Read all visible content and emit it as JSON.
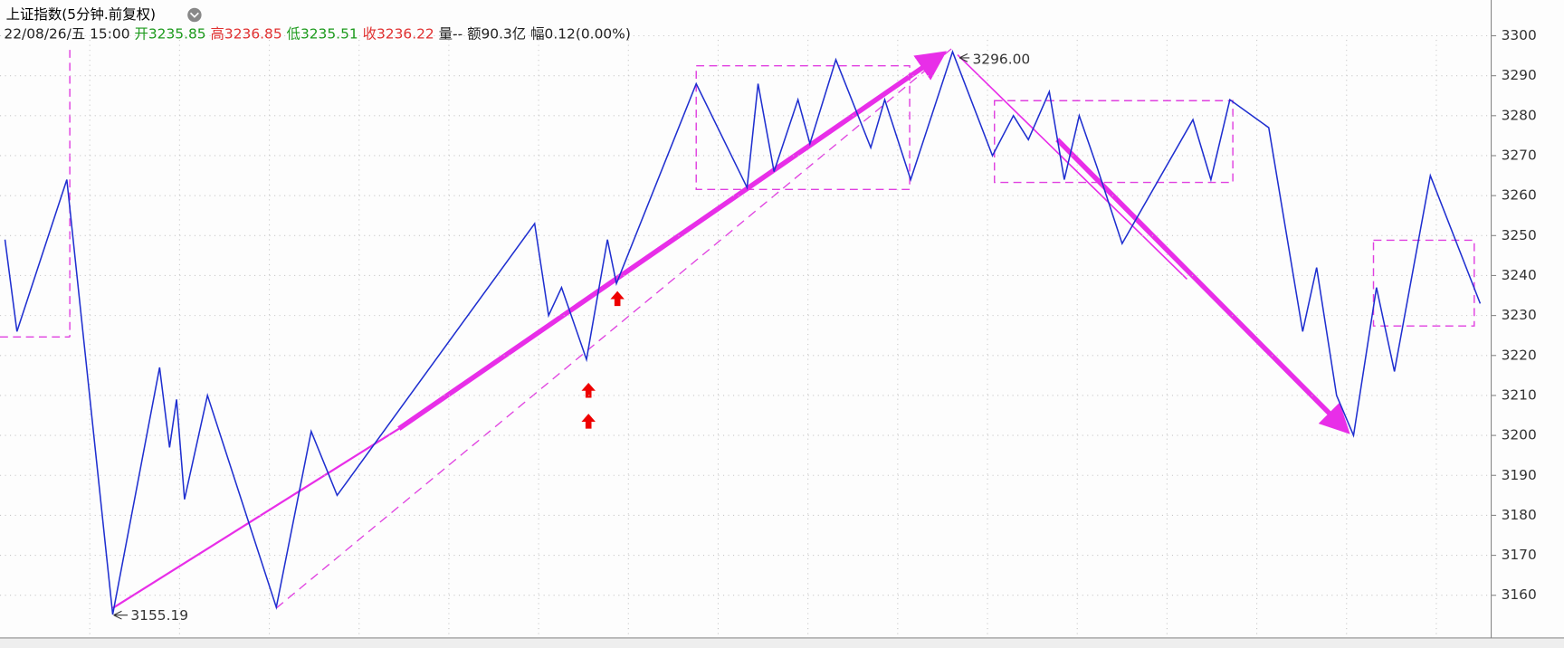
{
  "header": {
    "title": "上证指数(5分钟.前复权)",
    "date": "22/08/26/五 15:00",
    "open": "开3235.85",
    "high": "高3236.85",
    "low": "低3235.51",
    "close": "收3236.22",
    "volume": "量--",
    "amount": "额90.3亿",
    "change": "幅0.12(0.00%)"
  },
  "chart_data": {
    "type": "line",
    "color": "#1f2fd0",
    "x": [
      5,
      17,
      67,
      113,
      160,
      170,
      177,
      185,
      208,
      277,
      312,
      338,
      536,
      550,
      563,
      588,
      609,
      618,
      698,
      749,
      760,
      776,
      800,
      812,
      838,
      873,
      887,
      913,
      955,
      995,
      1016,
      1031,
      1052,
      1067,
      1082,
      1100,
      1125,
      1196,
      1214,
      1233,
      1272,
      1306,
      1320,
      1340,
      1357,
      1380,
      1398,
      1434,
      1484
    ],
    "values": [
      3249,
      3226,
      3264,
      3155.19,
      3217,
      3197,
      3209,
      3184,
      3210,
      3157,
      3201,
      3185,
      3253,
      3230,
      3237,
      3219,
      3249,
      3238,
      3288,
      3262,
      3288,
      3266,
      3284,
      3273,
      3294,
      3272,
      3284,
      3264,
      3296,
      3270,
      3280,
      3274,
      3286,
      3264,
      3280,
      3267,
      3248,
      3279,
      3264,
      3284,
      3277,
      3226,
      3242,
      3210,
      3200,
      3237,
      3216,
      3265,
      3233
    ],
    "xlim": [
      0,
      1495
    ],
    "ylim": [
      3149.3,
      3307.7
    ],
    "yticks": [
      3160,
      3170,
      3180,
      3190,
      3200,
      3210,
      3220,
      3230,
      3240,
      3250,
      3260,
      3270,
      3280,
      3290,
      3300
    ],
    "grid": true,
    "annotations": [
      "3296.00",
      "3155.19"
    ]
  }
}
